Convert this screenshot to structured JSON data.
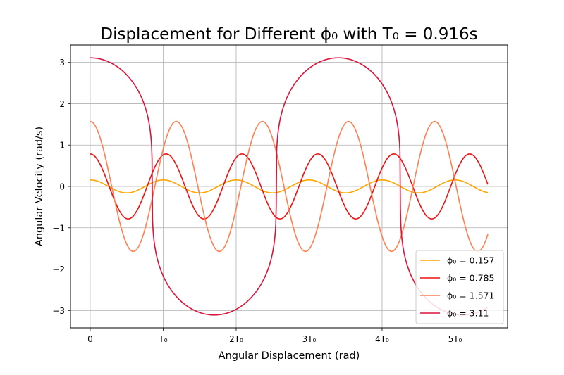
{
  "chart_data": {
    "type": "line",
    "title": "Displacement for Different ϕ₀ with T₀ = 0.916s",
    "xlabel": "Angular Displacement (rad)",
    "ylabel": "Angular Velocity (rad/s)",
    "x_period": 0.916,
    "x_max": 5.45,
    "xlim": [
      -0.27,
      5.72
    ],
    "ylim": [
      -3.42,
      3.42
    ],
    "xticks": [
      {
        "value": 0,
        "label": "0"
      },
      {
        "value": 1,
        "label": "T₀"
      },
      {
        "value": 2,
        "label": "2T₀"
      },
      {
        "value": 3,
        "label": "3T₀"
      },
      {
        "value": 4,
        "label": "4T₀"
      },
      {
        "value": 5,
        "label": "5T₀"
      }
    ],
    "yticks": [
      {
        "value": 3,
        "label": "3"
      },
      {
        "value": 2,
        "label": "2"
      },
      {
        "value": 1,
        "label": "1"
      },
      {
        "value": 0,
        "label": "0"
      },
      {
        "value": -1,
        "label": "−1"
      },
      {
        "value": -2,
        "label": "−2"
      },
      {
        "value": -3,
        "label": "−3"
      }
    ],
    "grid": true,
    "legend_position": "lower-right",
    "series": [
      {
        "name": "ϕ₀ = 0.157",
        "amplitude": 0.157,
        "period_ratio": 1.0,
        "shape": "sine",
        "color": "#ffa500"
      },
      {
        "name": "ϕ₀ = 0.785",
        "amplitude": 0.785,
        "period_ratio": 1.04,
        "shape": "sine",
        "color": "#ee1111"
      },
      {
        "name": "ϕ₀ = 1.571",
        "amplitude": 1.571,
        "period_ratio": 1.18,
        "shape": "sine",
        "color": "#ff7f50"
      },
      {
        "name": "ϕ₀ = 3.11",
        "amplitude": 3.11,
        "period_ratio": 3.4,
        "shape": "plateau",
        "color": "#dc143c"
      }
    ]
  }
}
